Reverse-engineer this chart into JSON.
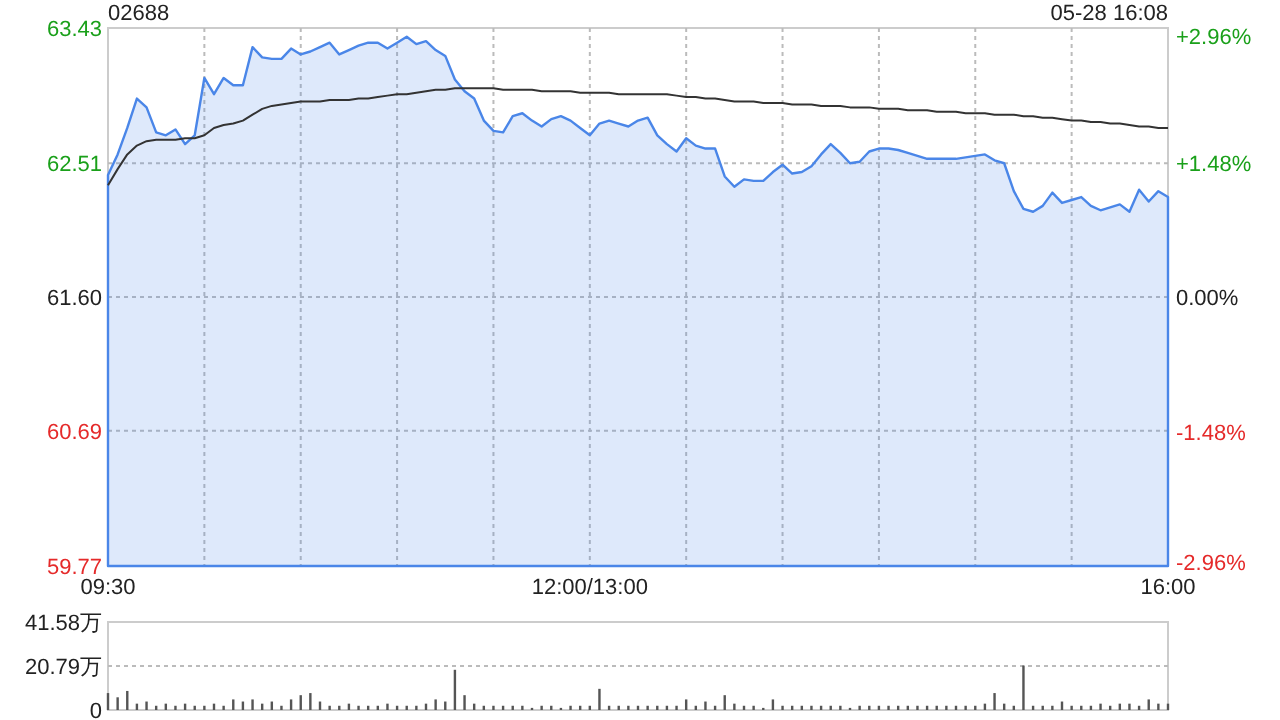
{
  "chart_data": [
    {
      "type": "area",
      "title": "02688",
      "annotations": [
        "05-28 16:08"
      ],
      "grid": true,
      "categories": [
        "09:30",
        null,
        null,
        null,
        null,
        null,
        null,
        null,
        null,
        null,
        null,
        null,
        null,
        null,
        null,
        null,
        null,
        null,
        null,
        null,
        null,
        null,
        null,
        null,
        null,
        null,
        null,
        null,
        null,
        null,
        null,
        null,
        null,
        null,
        null,
        null,
        null,
        null,
        null,
        null,
        null,
        null,
        null,
        null,
        null,
        null,
        null,
        null,
        null,
        null,
        "12:00/13:00",
        null,
        null,
        null,
        null,
        null,
        null,
        null,
        null,
        null,
        null,
        null,
        null,
        null,
        null,
        null,
        null,
        null,
        null,
        null,
        null,
        null,
        null,
        null,
        null,
        null,
        null,
        null,
        null,
        null,
        null,
        null,
        null,
        null,
        null,
        null,
        null,
        null,
        null,
        null,
        null,
        null,
        null,
        null,
        null,
        null,
        null,
        null,
        null,
        null,
        null,
        null,
        null,
        null,
        null,
        null,
        null,
        null,
        null,
        null,
        "16:00"
      ],
      "ylim": [
        59.77,
        63.43
      ],
      "yticks": [
        59.77,
        60.69,
        {
          "value": 61.6,
          "label": "61.60"
        },
        62.51,
        63.43
      ],
      "y2lim": [
        -2.96,
        2.96
      ],
      "y2ticks": [
        {
          "value": -2.96,
          "label": "-2.96%"
        },
        {
          "value": -1.48,
          "label": "-1.48%"
        },
        {
          "value": 0,
          "label": "0.00%"
        },
        {
          "value": 1.48,
          "label": "+1.48%"
        },
        {
          "value": 2.96,
          "label": "+2.96%"
        }
      ],
      "series": [
        {
          "type": "area",
          "color": "#4a86e8",
          "values": [
            62.43,
            62.57,
            62.75,
            62.95,
            62.89,
            62.72,
            62.7,
            62.74,
            62.64,
            62.7,
            63.09,
            62.98,
            63.09,
            63.04,
            63.04,
            63.3,
            63.23,
            63.22,
            63.22,
            63.29,
            63.25,
            63.27,
            63.3,
            63.33,
            63.25,
            63.28,
            63.31,
            63.33,
            63.33,
            63.29,
            63.33,
            63.37,
            63.32,
            63.34,
            63.28,
            63.24,
            63.08,
            63.0,
            62.95,
            62.8,
            62.73,
            62.72,
            62.83,
            62.85,
            62.8,
            62.76,
            62.81,
            62.83,
            62.8,
            62.75,
            62.7,
            62.78,
            62.8,
            62.78,
            62.76,
            62.8,
            62.82,
            62.7,
            62.64,
            62.59,
            62.68,
            62.63,
            62.61,
            62.61,
            62.42,
            62.35,
            62.4,
            62.39,
            62.39,
            62.45,
            62.5,
            62.44,
            62.45,
            62.49,
            62.57,
            62.64,
            62.58,
            62.51,
            62.52,
            62.59,
            62.61,
            62.61,
            62.6,
            62.58,
            62.56,
            62.54,
            62.54,
            62.54,
            62.54,
            62.55,
            62.56,
            62.57,
            62.53,
            62.51,
            62.32,
            62.2,
            62.18,
            62.22,
            62.31,
            62.24,
            62.26,
            62.28,
            62.22,
            62.19,
            62.21,
            62.23,
            62.18,
            62.33,
            62.25,
            62.32,
            62.28
          ]
        },
        {
          "type": "line",
          "color": "#333333",
          "values": [
            62.36,
            62.47,
            62.57,
            62.63,
            62.66,
            62.67,
            62.67,
            62.67,
            62.68,
            62.68,
            62.7,
            62.75,
            62.77,
            62.78,
            62.8,
            62.84,
            62.88,
            62.9,
            62.91,
            62.92,
            62.93,
            62.93,
            62.93,
            62.94,
            62.94,
            62.94,
            62.95,
            62.95,
            62.96,
            62.97,
            62.98,
            62.98,
            62.99,
            63.0,
            63.01,
            63.01,
            63.02,
            63.02,
            63.02,
            63.02,
            63.02,
            63.01,
            63.01,
            63.01,
            63.01,
            63.0,
            63.0,
            63.0,
            63.0,
            62.99,
            62.99,
            62.99,
            62.99,
            62.98,
            62.98,
            62.98,
            62.98,
            62.98,
            62.98,
            62.97,
            62.96,
            62.96,
            62.95,
            62.95,
            62.94,
            62.93,
            62.93,
            62.93,
            62.92,
            62.92,
            62.92,
            62.91,
            62.91,
            62.91,
            62.9,
            62.9,
            62.9,
            62.89,
            62.89,
            62.89,
            62.88,
            62.88,
            62.88,
            62.87,
            62.87,
            62.87,
            62.86,
            62.86,
            62.86,
            62.85,
            62.85,
            62.85,
            62.84,
            62.84,
            62.84,
            62.83,
            62.83,
            62.82,
            62.82,
            62.81,
            62.8,
            62.8,
            62.79,
            62.79,
            62.78,
            62.78,
            62.77,
            62.76,
            62.76,
            62.75,
            62.75
          ]
        }
      ]
    },
    {
      "type": "bar",
      "color": "#555555",
      "grid": "y",
      "tick_labels": "y",
      "categories": [
        null,
        null,
        null,
        null,
        null,
        null,
        null,
        null,
        null,
        null,
        null,
        null,
        null,
        null,
        null,
        null,
        null,
        null,
        null,
        null,
        null,
        null,
        null,
        null,
        null,
        null,
        null,
        null,
        null,
        null,
        null,
        null,
        null,
        null,
        null,
        null,
        null,
        null,
        null,
        null,
        null,
        null,
        null,
        null,
        null,
        null,
        null,
        null,
        null,
        null,
        null,
        null,
        null,
        null,
        null,
        null,
        null,
        null,
        null,
        null,
        null,
        null,
        null,
        null,
        null,
        null,
        null,
        null,
        null,
        null,
        null,
        null,
        null,
        null,
        null,
        null,
        null,
        null,
        null,
        null,
        null,
        null,
        null,
        null,
        null,
        null,
        null,
        null,
        null,
        null,
        null,
        null,
        null,
        null,
        null,
        null,
        null,
        null,
        null,
        null,
        null,
        null,
        null,
        null,
        null,
        null,
        null,
        null,
        null,
        null,
        null
      ],
      "ylim": [
        0,
        41.58
      ],
      "yticks": [
        0,
        {
          "value": 20.79,
          "label": "20.79万"
        },
        {
          "value": 41.58,
          "label": "41.58万"
        }
      ],
      "values": [
        8,
        6,
        9,
        3,
        4,
        2,
        3,
        2,
        3,
        2,
        2,
        3,
        2,
        5,
        4,
        5,
        3,
        4,
        2,
        5,
        7,
        8,
        4,
        2,
        2,
        3,
        2,
        2,
        2,
        3,
        2,
        2,
        2,
        3,
        5,
        4,
        19,
        7,
        3,
        2,
        2,
        2,
        2,
        2,
        1,
        2,
        2,
        1,
        2,
        2,
        2,
        10,
        2,
        2,
        2,
        2,
        2,
        2,
        2,
        2,
        5,
        2,
        4,
        2,
        7,
        3,
        2,
        2,
        1,
        5,
        2,
        2,
        2,
        2,
        2,
        2,
        2,
        1,
        2,
        2,
        2,
        2,
        2,
        2,
        2,
        2,
        2,
        2,
        2,
        2,
        2,
        3,
        8,
        3,
        2,
        21,
        2,
        2,
        2,
        4,
        2,
        2,
        2,
        3,
        2,
        3,
        3,
        2,
        5,
        3,
        3
      ]
    }
  ]
}
